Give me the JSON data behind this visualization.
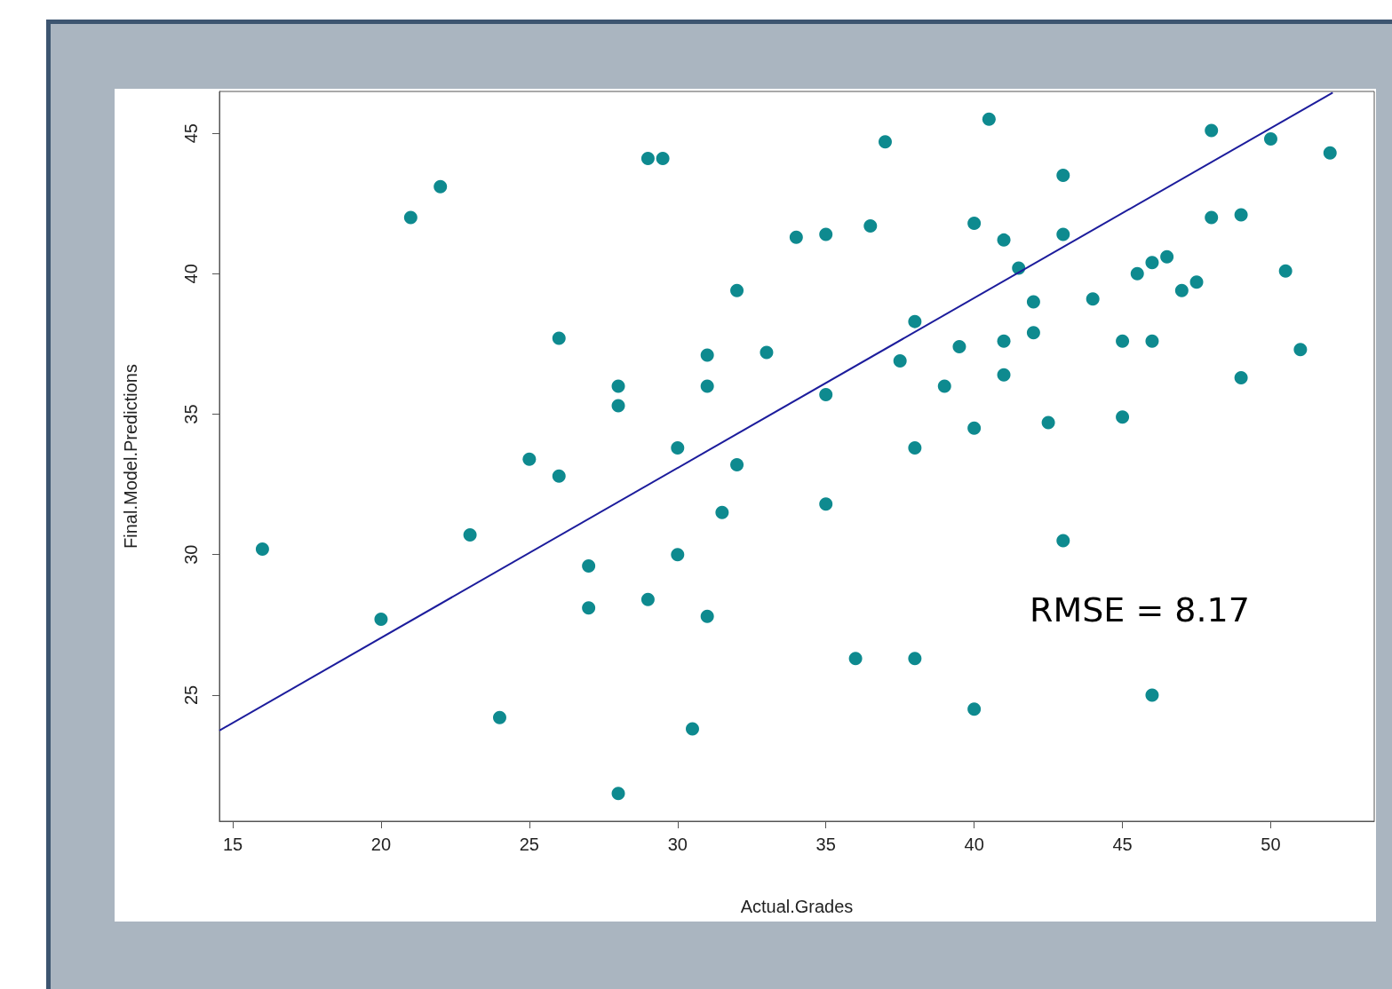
{
  "chart_data": {
    "type": "scatter",
    "xlabel": "Actual.Grades",
    "ylabel": "Final.Model.Predictions",
    "xlim": [
      14.55,
      53.49
    ],
    "ylim": [
      20.51,
      46.49
    ],
    "xticks": [
      15,
      20,
      25,
      30,
      35,
      40,
      45,
      50
    ],
    "yticks": [
      25,
      30,
      35,
      40,
      45
    ],
    "annotations": [
      "RMSE = 8.17"
    ],
    "series": [
      {
        "type": "scatter",
        "marker": "circle",
        "color": "#0e8a8f",
        "x": [
          16,
          20,
          21,
          22,
          23,
          24,
          25,
          26,
          26,
          27,
          27,
          28,
          28,
          28,
          29,
          29.5,
          29,
          30,
          30,
          30.5,
          31,
          31,
          31,
          31.5,
          32,
          32,
          33,
          34,
          35,
          35,
          35,
          36,
          36.5,
          37,
          37.5,
          38,
          38,
          38,
          39,
          39.5,
          40,
          40,
          40,
          40.5,
          41,
          41,
          41,
          41.5,
          42,
          42,
          42.5,
          43,
          43,
          43,
          44,
          45,
          45,
          45.5,
          46,
          46,
          46,
          46.5,
          47,
          47.5,
          48,
          48,
          49,
          49,
          50,
          50.5,
          51,
          52
        ],
        "values": [
          30.2,
          27.7,
          42.0,
          43.1,
          30.7,
          24.2,
          33.4,
          37.7,
          32.8,
          29.6,
          28.1,
          36.0,
          35.3,
          21.5,
          44.1,
          44.1,
          28.4,
          33.8,
          30.0,
          23.8,
          37.1,
          36.0,
          27.8,
          31.5,
          39.4,
          33.2,
          37.2,
          41.3,
          41.4,
          35.7,
          31.8,
          26.3,
          41.7,
          44.7,
          36.9,
          38.3,
          33.8,
          26.3,
          36.0,
          37.4,
          41.8,
          34.5,
          24.5,
          45.5,
          41.2,
          37.6,
          36.4,
          40.2,
          39.0,
          37.9,
          34.7,
          43.5,
          41.4,
          30.5,
          39.1,
          37.6,
          34.9,
          40.0,
          40.4,
          37.6,
          25.0,
          40.6,
          39.4,
          39.7,
          45.1,
          42.0,
          42.1,
          36.3,
          44.8,
          40.1,
          37.3,
          44.3
        ]
      },
      {
        "type": "line",
        "marker": "none",
        "color": "#1c1c9c",
        "line_style": "solid",
        "x": [
          14.55,
          52.09
        ],
        "values": [
          23.74,
          46.45
        ]
      }
    ]
  }
}
